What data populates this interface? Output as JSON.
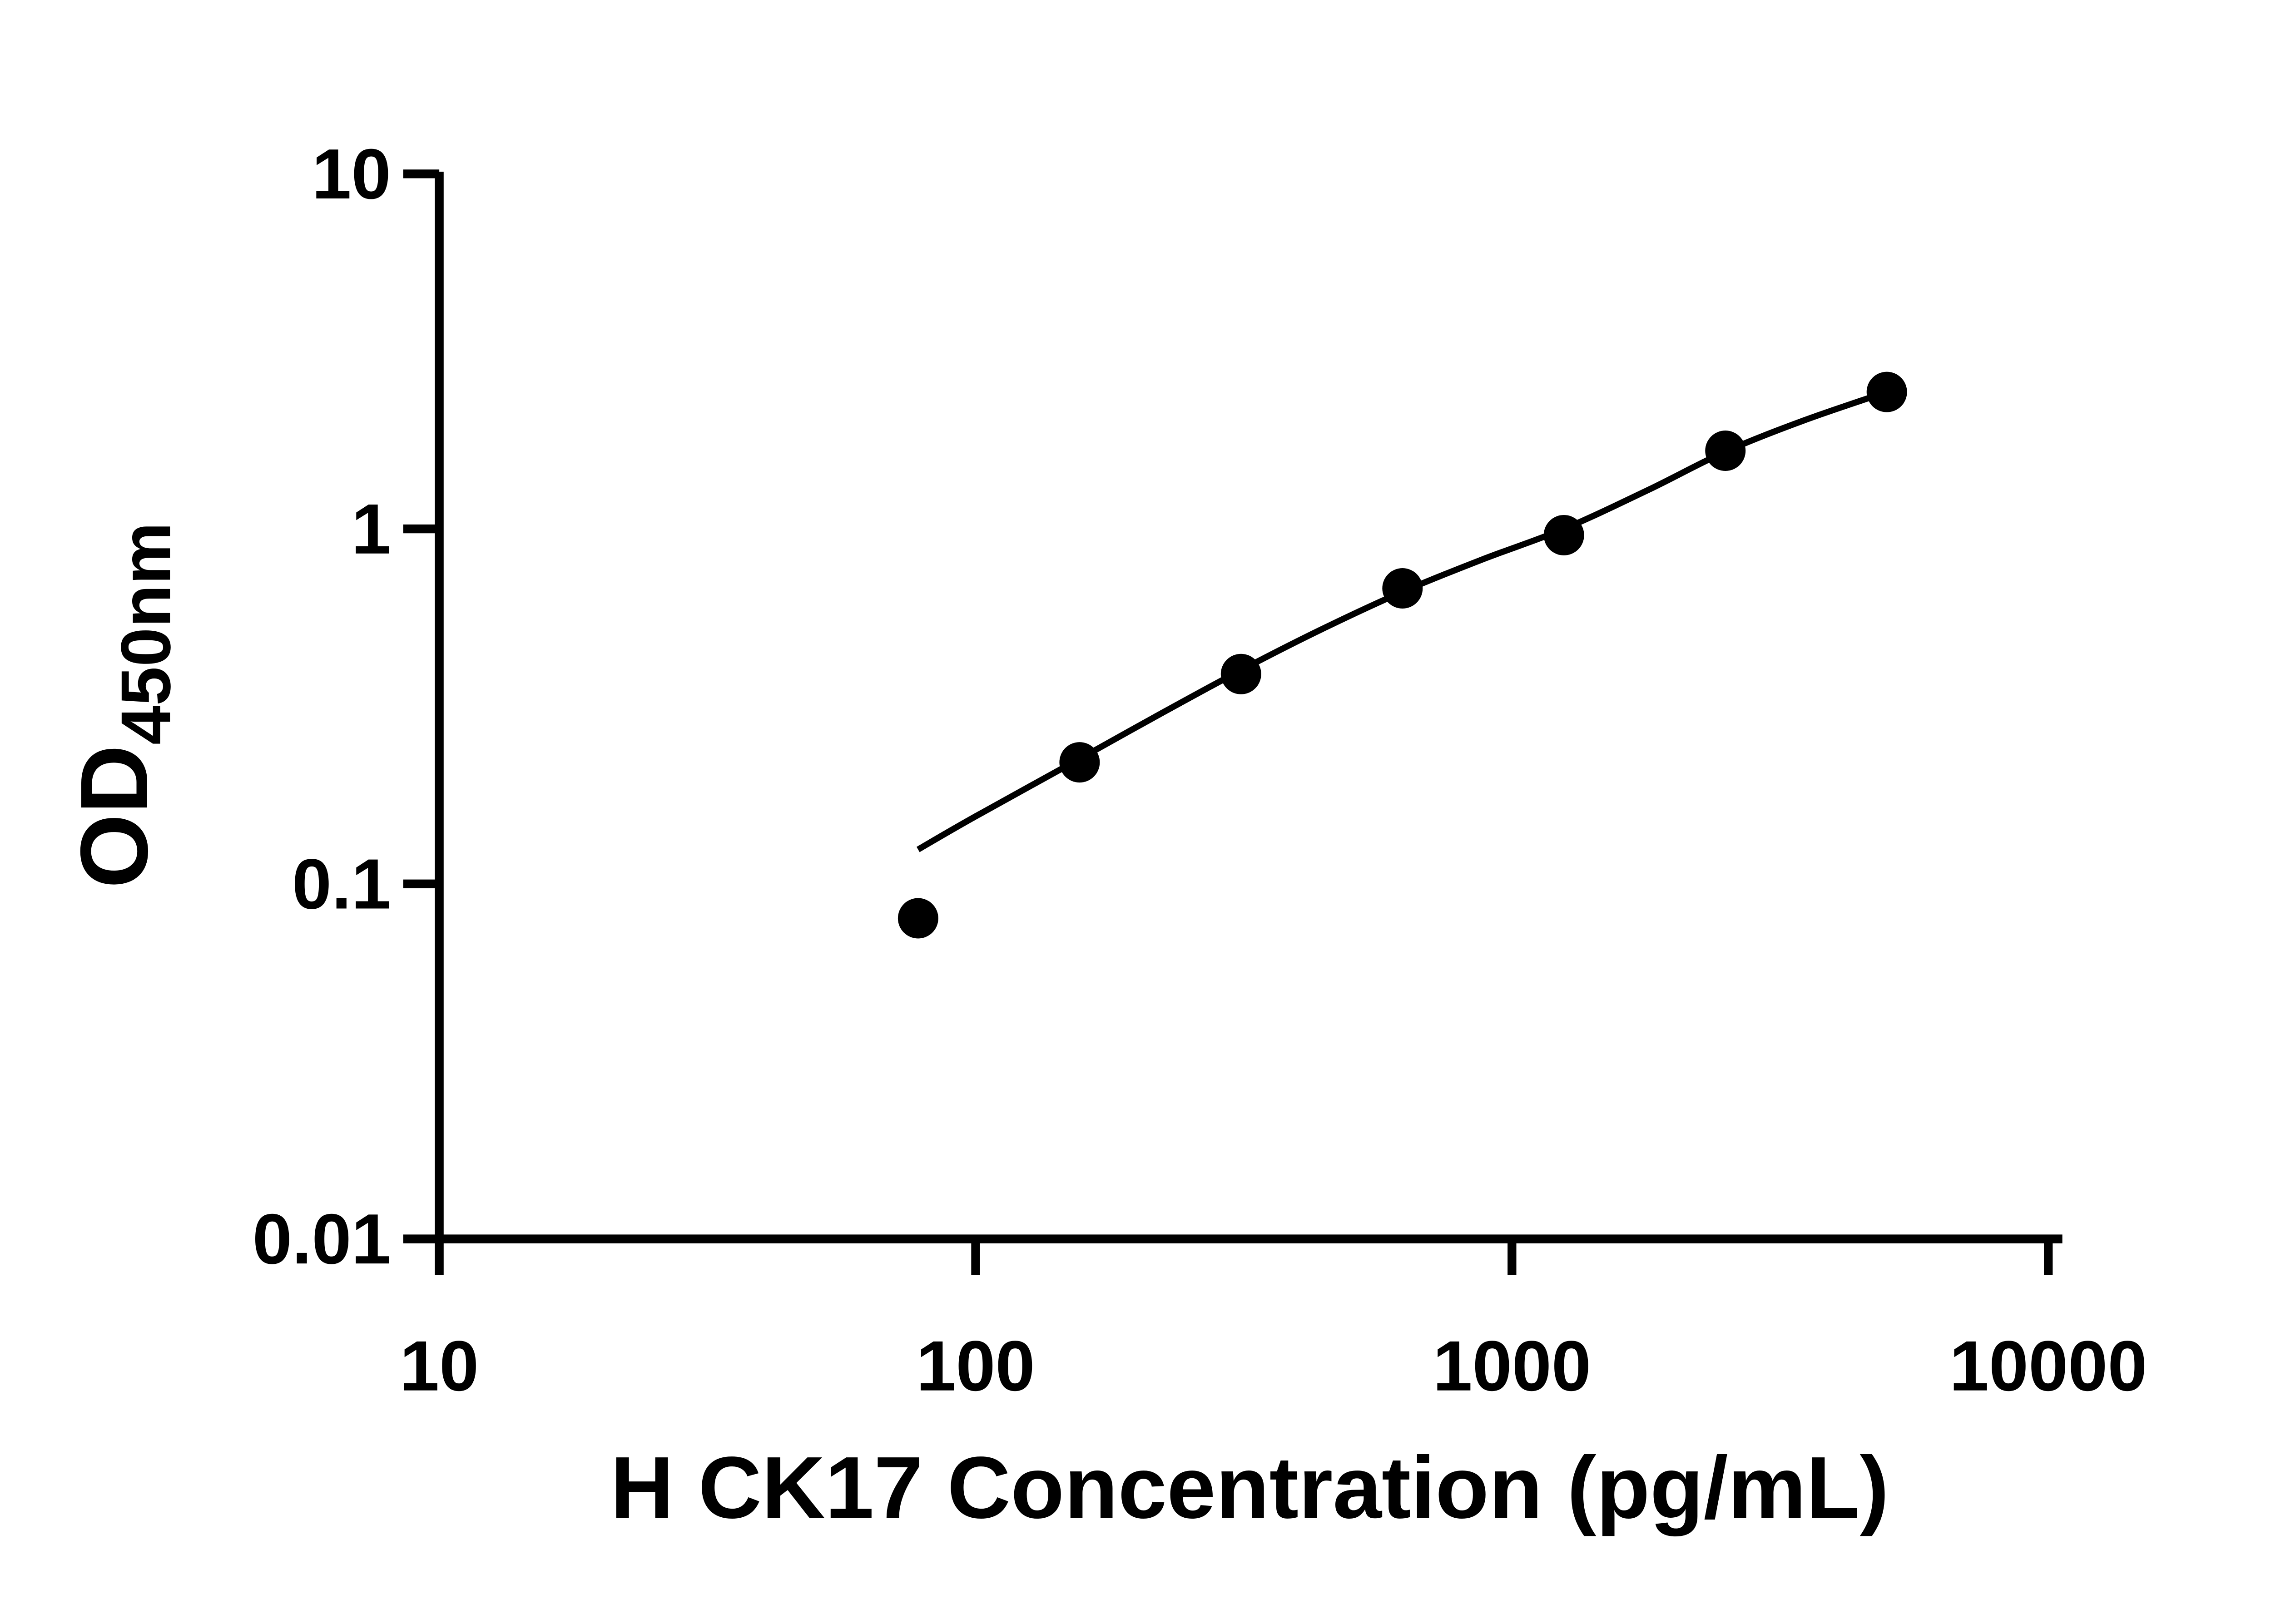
{
  "chart_data": {
    "type": "scatter",
    "title": "",
    "xlabel": "H CK17 Concentration (pg/mL)",
    "ylabel_main": "OD",
    "ylabel_sub": "450nm",
    "x_scale": "log",
    "y_scale": "log",
    "xlim": [
      10,
      10000
    ],
    "ylim": [
      0.01,
      10
    ],
    "grid": false,
    "legend": "none",
    "x_ticks": [
      {
        "value": 10,
        "label": "10"
      },
      {
        "value": 100,
        "label": "100"
      },
      {
        "value": 1000,
        "label": "1000"
      },
      {
        "value": 10000,
        "label": "10000"
      }
    ],
    "y_ticks": [
      {
        "value": 0.01,
        "label": "0.01"
      },
      {
        "value": 0.1,
        "label": "0.1"
      },
      {
        "value": 1,
        "label": "1"
      },
      {
        "value": 10,
        "label": "10"
      }
    ],
    "series": [
      {
        "marker": "circle",
        "color": "#000000",
        "points": [
          [
            78.125,
            0.08
          ],
          [
            156.25,
            0.22
          ],
          [
            312.5,
            0.39
          ],
          [
            625,
            0.68
          ],
          [
            1250,
            0.96
          ],
          [
            2500,
            1.66
          ],
          [
            5000,
            2.43
          ]
        ]
      }
    ],
    "fit_line": [
      [
        78.125,
        0.125
      ],
      [
        100,
        0.155
      ],
      [
        156.25,
        0.225
      ],
      [
        220,
        0.3
      ],
      [
        312.5,
        0.4
      ],
      [
        440,
        0.52
      ],
      [
        625,
        0.665
      ],
      [
        880,
        0.82
      ],
      [
        1250,
        1.0
      ],
      [
        1800,
        1.29
      ],
      [
        2500,
        1.65
      ],
      [
        3500,
        2.02
      ],
      [
        5000,
        2.43
      ]
    ],
    "colors": {
      "axis": "#000000",
      "marker": "#000000",
      "line": "#000000",
      "background": "#ffffff"
    }
  }
}
